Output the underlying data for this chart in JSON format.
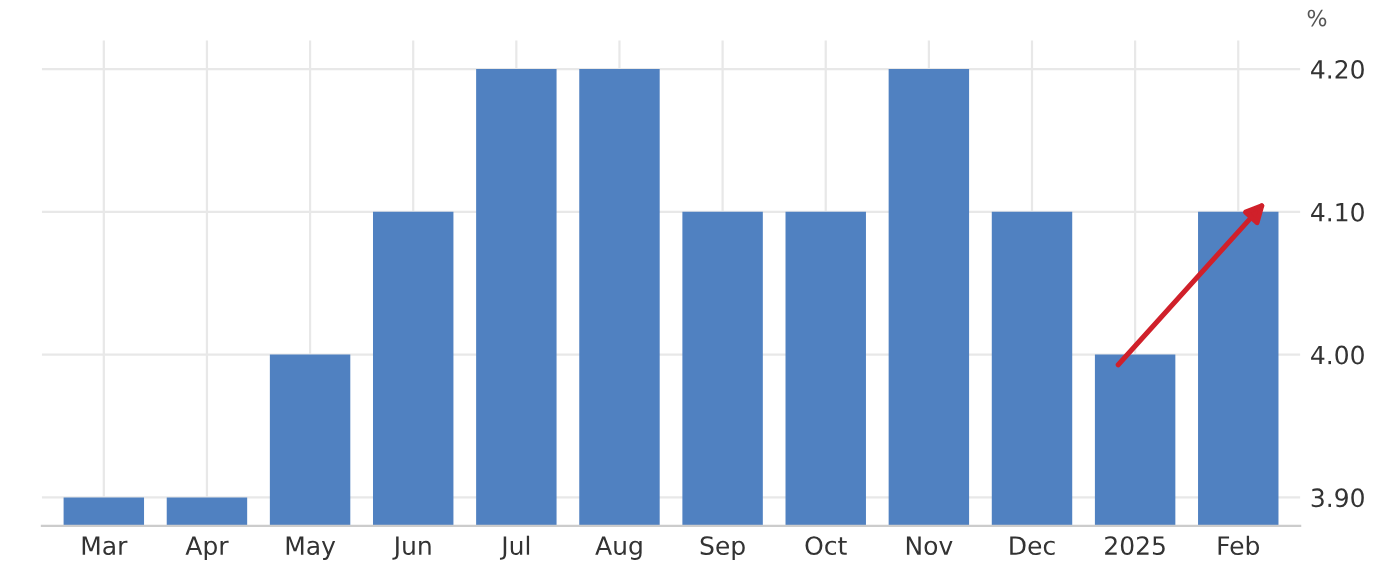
{
  "chart_data": {
    "type": "bar",
    "ylabel": "%",
    "categories": [
      "Mar",
      "Apr",
      "May",
      "Jun",
      "Jul",
      "Aug",
      "Sep",
      "Oct",
      "Nov",
      "Dec",
      "2025",
      "Feb"
    ],
    "values": [
      3.9,
      3.9,
      4.0,
      4.1,
      4.2,
      4.2,
      4.1,
      4.1,
      4.2,
      4.1,
      4.0,
      4.1
    ],
    "color": "#5081c1",
    "ylim": [
      3.88,
      4.22
    ],
    "yticks": [
      {
        "value": 3.9,
        "label": "3.90"
      },
      {
        "value": 4.0,
        "label": "4.00"
      },
      {
        "value": 4.1,
        "label": "4.10"
      },
      {
        "value": 4.2,
        "label": "4.20"
      }
    ],
    "grid": true
  }
}
